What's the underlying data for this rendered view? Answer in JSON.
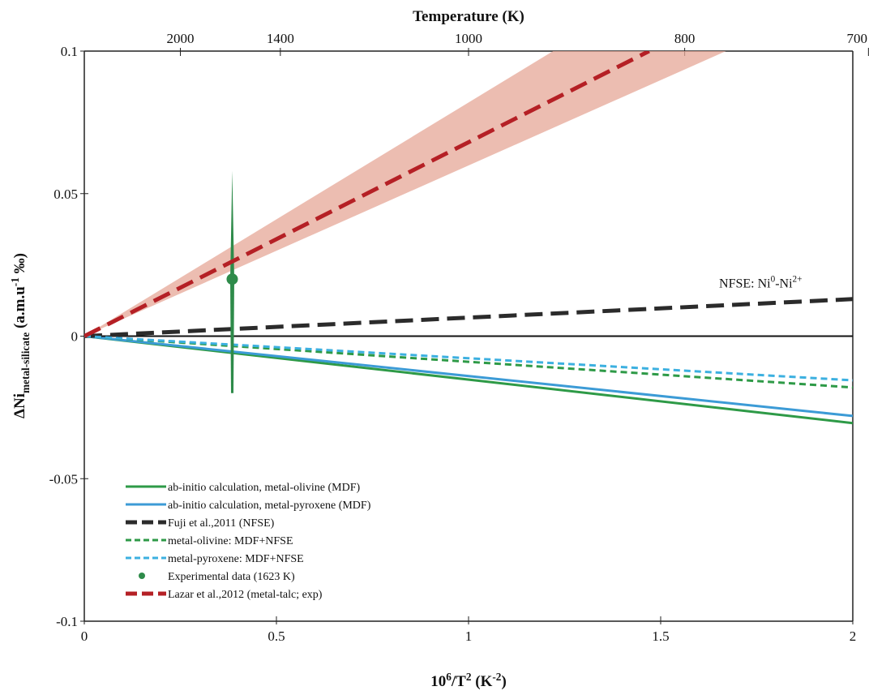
{
  "chart_data": {
    "type": "line",
    "x2_title": "Temperature (K)",
    "x2_scale": "inverse_square_millions",
    "x2ticks": [
      2000,
      1400,
      1000,
      800,
      700
    ],
    "xlabel": [
      {
        "text": "10"
      },
      {
        "text": "6",
        "shift": "super"
      },
      {
        "text": "/T"
      },
      {
        "text": "2",
        "shift": "super"
      },
      {
        "text": " (K"
      },
      {
        "text": "-2",
        "shift": "super"
      },
      {
        "text": ")"
      }
    ],
    "ylabel": [
      {
        "text": "ΔNi"
      },
      {
        "text": "metal-silicate",
        "shift": "sub"
      },
      {
        "text": " (a.m.u"
      },
      {
        "text": "-1",
        "shift": "super"
      },
      {
        "text": " ‰)"
      }
    ],
    "xlim": [
      0,
      2
    ],
    "ylim": [
      -0.1,
      0.1
    ],
    "xticks": [
      0,
      0.5,
      1,
      1.5,
      2
    ],
    "yticks": [
      -0.1,
      -0.05,
      0,
      0.05,
      0.1
    ],
    "zero_line": true,
    "legend": "lower left",
    "annotation": [
      {
        "text": "NFSE: Ni"
      },
      {
        "text": "0",
        "shift": "super"
      },
      {
        "text": "-Ni"
      },
      {
        "text": "2+",
        "shift": "super"
      }
    ],
    "annotation_x": 1.76,
    "annotation_y": 0.017,
    "series": [
      {
        "name": "ab-initio calculation, metal-olivine (MDF)",
        "color": "#2e9a47",
        "dash": "solid",
        "x": [
          0,
          2
        ],
        "values": [
          0,
          -0.0305
        ]
      },
      {
        "name": "ab-initio calculation, metal-pyroxene (MDF)",
        "color": "#3c9bd6",
        "dash": "solid",
        "x": [
          0,
          2
        ],
        "values": [
          0,
          -0.028
        ]
      },
      {
        "name": "Fuji et al.,2011 (NFSE)",
        "color": "#2b2b2b",
        "dash": "dashed",
        "x": [
          0,
          2
        ],
        "values": [
          0,
          0.013
        ]
      },
      {
        "name": "metal-olivine: MDF+NFSE",
        "color": "#2e9a47",
        "dash": "dotted",
        "x": [
          0,
          2
        ],
        "values": [
          0,
          -0.018
        ]
      },
      {
        "name": "metal-pyroxene: MDF+NFSE",
        "color": "#3cb0e0",
        "dash": "dotted",
        "x": [
          0,
          2
        ],
        "values": [
          0,
          -0.0155
        ]
      },
      {
        "name": "Experimental data (1623 K)",
        "color": "#2e8b4a",
        "marker": "point",
        "x": [
          0.385
        ],
        "values": [
          0.02
        ],
        "error_minus": [
          0.04
        ],
        "error_plus": [
          0.038
        ]
      },
      {
        "name": "Lazar et al.,2012 (metal-talc; exp)",
        "color": "#b52025",
        "dash": "dashed",
        "x": [
          0,
          1.47
        ],
        "values": [
          0,
          0.1
        ],
        "band": {
          "color": "#e6a797",
          "upper_x": [
            0,
            1.22
          ],
          "upper": [
            0,
            0.1
          ],
          "lower_x": [
            0,
            1.67
          ],
          "lower": [
            0,
            0.1
          ]
        }
      }
    ]
  }
}
